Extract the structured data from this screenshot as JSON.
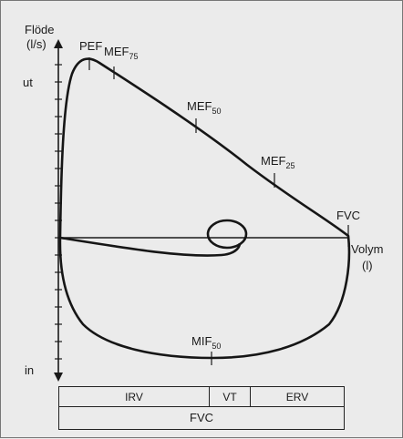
{
  "axis_labels": {
    "y_title": "Flöde",
    "y_unit": "(l/s)",
    "y_top": "ut",
    "y_bottom": "in",
    "x_title": "Volym",
    "x_unit": "(l)"
  },
  "markers": {
    "pef": "PEF",
    "mef75": {
      "main": "MEF",
      "sub": "75"
    },
    "mef50": {
      "main": "MEF",
      "sub": "50"
    },
    "mef25": {
      "main": "MEF",
      "sub": "25"
    },
    "fvc": "FVC",
    "mif50": {
      "main": "MIF",
      "sub": "50"
    }
  },
  "volume_bar": {
    "irv": "IRV",
    "vt": "VT",
    "erv": "ERV",
    "fvc": "FVC"
  }
}
